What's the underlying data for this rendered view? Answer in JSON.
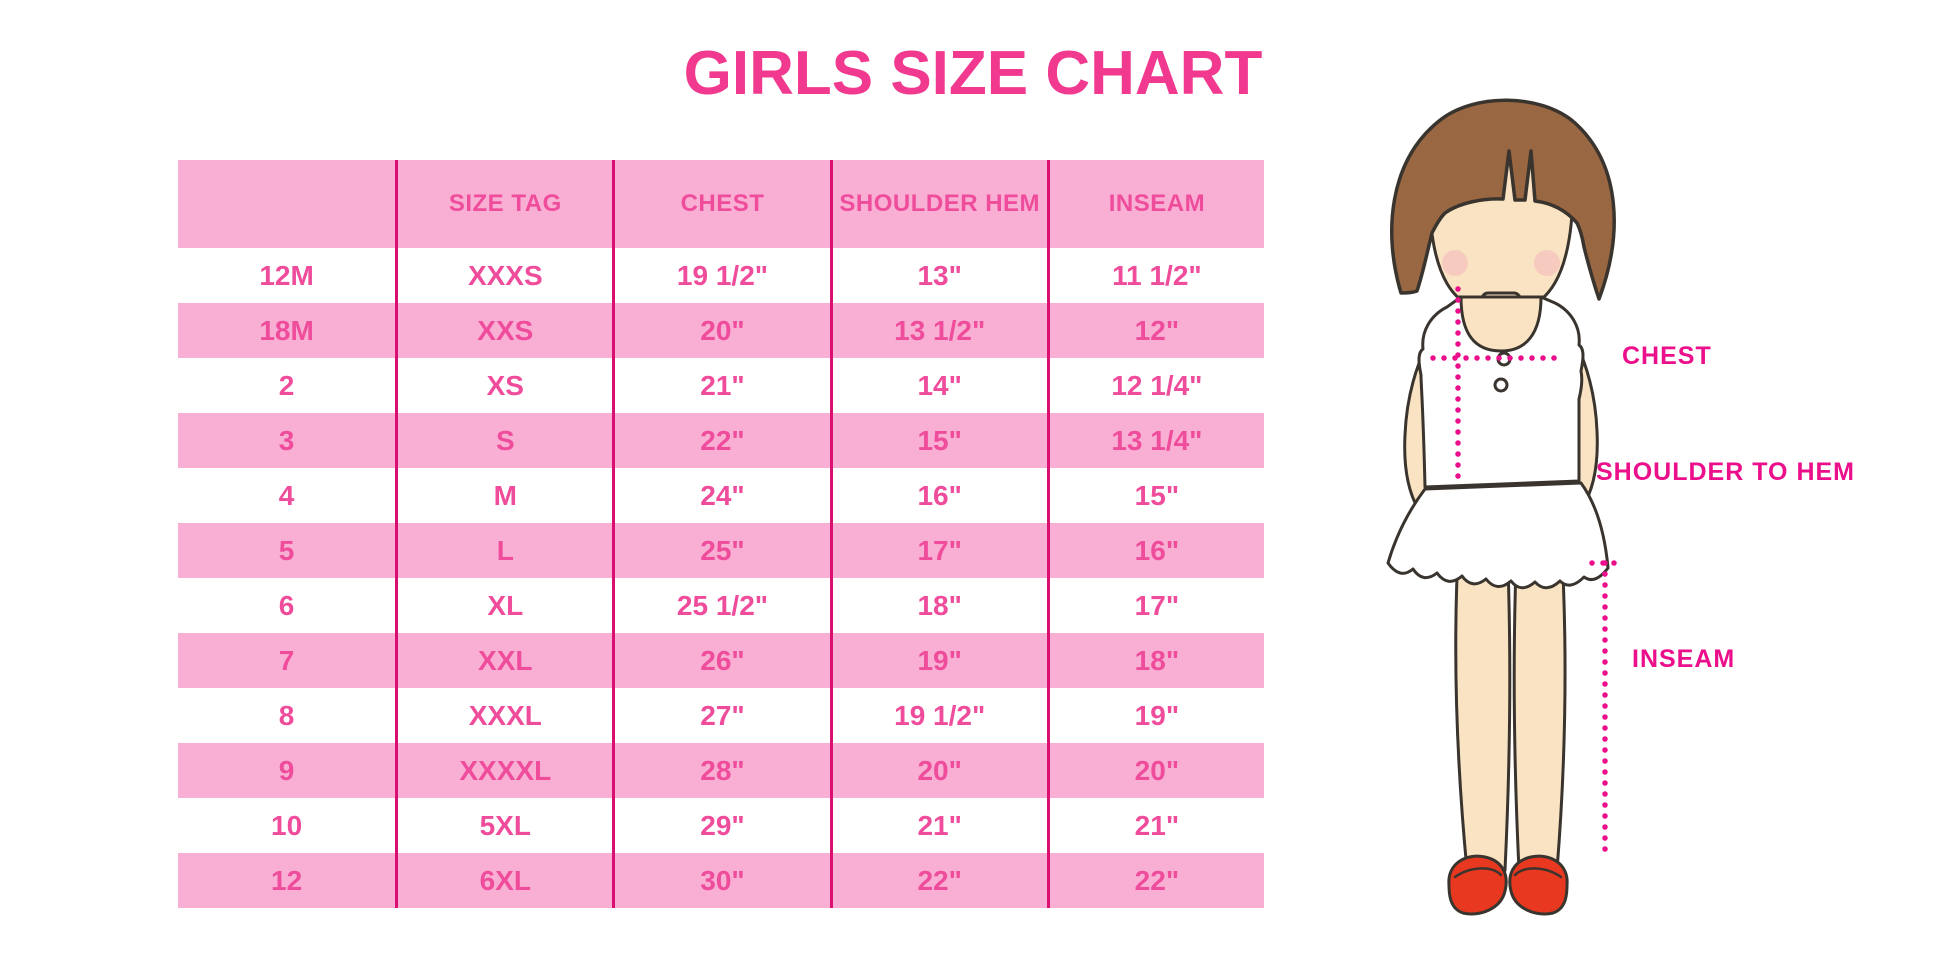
{
  "title": "GIRLS SIZE CHART",
  "colors": {
    "title_pink": "#F0398F",
    "table_text_pink": "#EF4C9C",
    "row_pink": "#F9AFD4",
    "divider_magenta": "#D90F72",
    "label_magenta": "#EC0F8B",
    "hair_brown": "#9A6743",
    "skin": "#FAE3C2",
    "shoe_red": "#E8381F"
  },
  "chart_data": {
    "type": "table",
    "title": "GIRLS SIZE CHART",
    "columns": [
      "",
      "SIZE TAG",
      "CHEST",
      "SHOULDER HEM",
      "INSEAM"
    ],
    "rows": [
      [
        "12M",
        "XXXS",
        "19 1/2\"",
        "13\"",
        "11 1/2\""
      ],
      [
        "18M",
        "XXS",
        "20\"",
        "13 1/2\"",
        "12\""
      ],
      [
        "2",
        "XS",
        "21\"",
        "14\"",
        "12 1/4\""
      ],
      [
        "3",
        "S",
        "22\"",
        "15\"",
        "13 1/4\""
      ],
      [
        "4",
        "M",
        "24\"",
        "16\"",
        "15\""
      ],
      [
        "5",
        "L",
        "25\"",
        "17\"",
        "16\""
      ],
      [
        "6",
        "XL",
        "25 1/2\"",
        "18\"",
        "17\""
      ],
      [
        "7",
        "XXL",
        "26\"",
        "19\"",
        "18\""
      ],
      [
        "8",
        "XXXL",
        "27\"",
        "19 1/2\"",
        "19\""
      ],
      [
        "9",
        "XXXXL",
        "28\"",
        "20\"",
        "20\""
      ],
      [
        "10",
        "5XL",
        "29\"",
        "21\"",
        "21\""
      ],
      [
        "12",
        "6XL",
        "30\"",
        "22\"",
        "22\""
      ]
    ],
    "annotations": [
      "CHEST",
      "SHOULDER TO HEM",
      "INSEAM"
    ],
    "legend_position": "none",
    "grid": "vertical-dividers-only",
    "row_striping": "white / pink alternating, header pink"
  }
}
